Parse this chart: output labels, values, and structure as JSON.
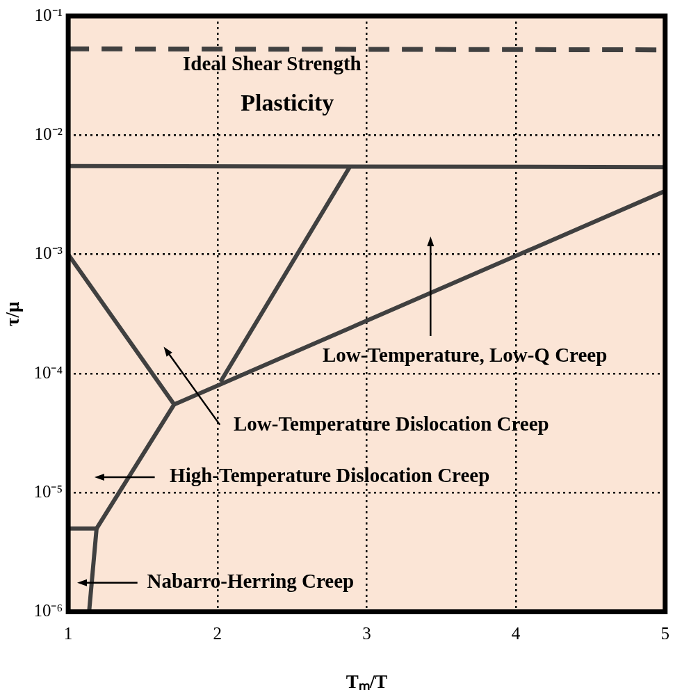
{
  "chart_data": {
    "type": "line",
    "xlabel": "Tₘ/T",
    "ylabel": "τ/μ",
    "log": "y",
    "grid": true,
    "legend": false,
    "marker": "none",
    "xlim": [
      1,
      5
    ],
    "xticks": [
      1,
      2,
      3,
      4,
      5
    ],
    "ylim": [
      1e-06,
      0.1
    ],
    "yticks": [
      {
        "value": 1e-06,
        "label": "10⁻⁶"
      },
      {
        "value": 1e-05,
        "label": "10⁻⁵"
      },
      {
        "value": 0.0001,
        "label": "10⁻⁴"
      },
      {
        "value": 0.001,
        "label": "10⁻³"
      },
      {
        "value": 0.01,
        "label": "10⁻²"
      },
      {
        "value": 0.1,
        "label": "10⁻¹"
      }
    ],
    "series": [
      {
        "color": "#404040",
        "line_style": "dashed",
        "x": [
          1,
          5
        ],
        "values": [
          0.053,
          0.052
        ]
      },
      {
        "color": "#404040",
        "x": [
          1,
          5
        ],
        "values": [
          0.0055,
          0.0054
        ]
      },
      {
        "color": "#404040",
        "x": [
          2.02,
          2.89
        ],
        "values": [
          8.5e-05,
          0.0055
        ]
      },
      {
        "color": "#404040",
        "x": [
          1.71,
          5
        ],
        "values": [
          5.5e-05,
          0.0034
        ]
      },
      {
        "color": "#404040",
        "x": [
          1,
          1.71
        ],
        "values": [
          0.001,
          5.5e-05
        ]
      },
      {
        "color": "#404040",
        "x": [
          1.71,
          1.19
        ],
        "values": [
          5.5e-05,
          5e-06
        ]
      },
      {
        "color": "#404040",
        "x": [
          1,
          1.19
        ],
        "values": [
          5e-06,
          5e-06
        ]
      },
      {
        "color": "#404040",
        "x": [
          1.19,
          1.14
        ],
        "values": [
          5e-06,
          1e-06
        ]
      }
    ],
    "annotations": [
      "Ideal Shear Strength",
      "Plasticity",
      "Low-Temperature, Low-Q Creep",
      "Low-Temperature Dislocation Creep",
      "High-Temperature Dislocation Creep",
      "Nabarro-Herring Creep"
    ]
  }
}
